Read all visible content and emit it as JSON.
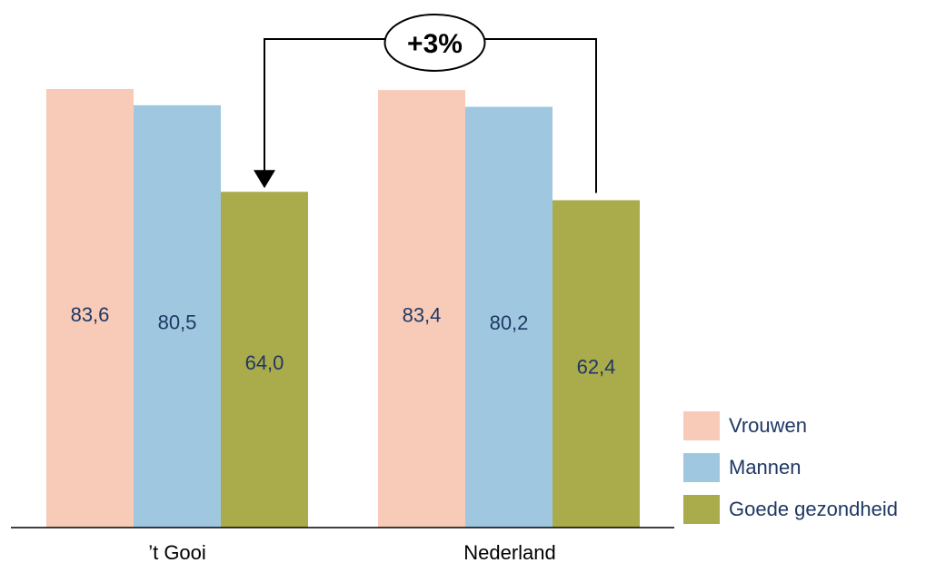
{
  "chart_data": {
    "type": "bar",
    "categories": [
      "’t Gooi",
      "Nederland"
    ],
    "series": [
      {
        "name": "Vrouwen",
        "values": [
          83.6,
          83.4
        ],
        "labels": [
          "83,6",
          "83,4"
        ],
        "color": "#f8cbb8"
      },
      {
        "name": "Mannen",
        "values": [
          80.5,
          80.2
        ],
        "labels": [
          "80,5",
          "80,2"
        ],
        "color": "#9fc8e0"
      },
      {
        "name": "Goede gezondheid",
        "values": [
          64.0,
          62.4
        ],
        "labels": [
          "64,0",
          "62,4"
        ],
        "color": "#aaab4b"
      }
    ],
    "ylim": [
      0,
      90
    ],
    "grid": false,
    "legend": "right",
    "annotation": {
      "text": "+3%",
      "from": "Nederland / Goede gezondheid",
      "to": "’t Gooi / Goede gezondheid"
    }
  }
}
